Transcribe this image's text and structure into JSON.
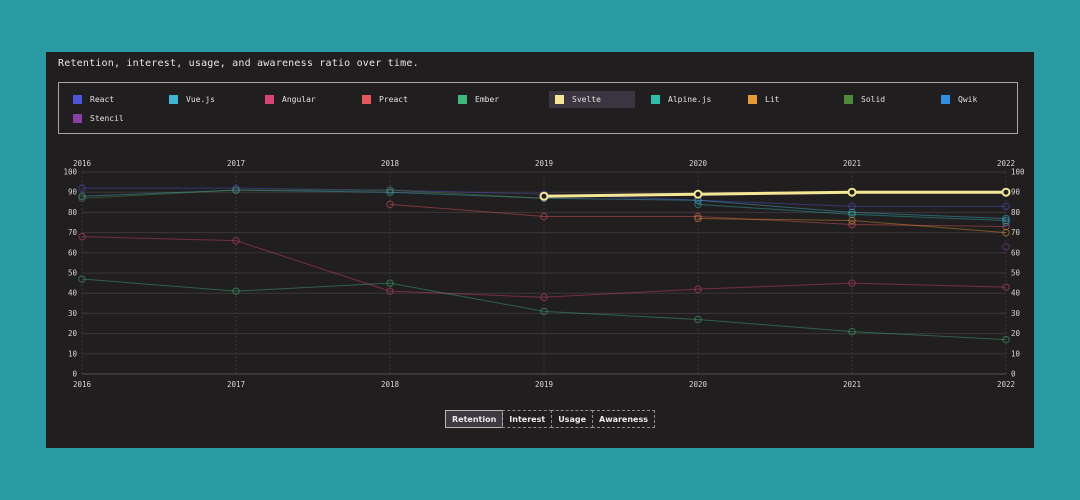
{
  "subtitle": "Retention, interest, usage, and awareness ratio over time.",
  "legend": [
    {
      "name": "React",
      "color": "#4c56d6"
    },
    {
      "name": "Vue.js",
      "color": "#3fb6d4"
    },
    {
      "name": "Angular",
      "color": "#d94474"
    },
    {
      "name": "Preact",
      "color": "#e5595e"
    },
    {
      "name": "Ember",
      "color": "#3cb878"
    },
    {
      "name": "Svelte",
      "color": "#f4e796",
      "active": true
    },
    {
      "name": "Alpine.js",
      "color": "#2ebdaa"
    },
    {
      "name": "Lit",
      "color": "#e89a33"
    },
    {
      "name": "Solid",
      "color": "#4f8a3b"
    },
    {
      "name": "Qwik",
      "color": "#2f8fe0"
    },
    {
      "name": "Stencil",
      "color": "#8a3fa8"
    }
  ],
  "tabs": [
    {
      "label": "Retention",
      "active": true
    },
    {
      "label": "Interest"
    },
    {
      "label": "Usage"
    },
    {
      "label": "Awareness"
    }
  ],
  "chart_data": {
    "type": "line",
    "x": [
      "2016",
      "2017",
      "2018",
      "2019",
      "2020",
      "2021",
      "2022"
    ],
    "yticks": [
      0,
      10,
      20,
      30,
      40,
      50,
      60,
      70,
      80,
      90,
      100
    ],
    "ylim": [
      0,
      100
    ],
    "grid": true,
    "highlighted": "Svelte",
    "series": [
      {
        "name": "React",
        "color": "#4c56d6",
        "values": [
          92,
          92,
          91,
          89,
          86,
          83,
          83
        ]
      },
      {
        "name": "Vue.js",
        "color": "#3fb6d4",
        "values": [
          88,
          91,
          90,
          87,
          86,
          80,
          77
        ]
      },
      {
        "name": "Angular",
        "color": "#d94474",
        "values": [
          68,
          66,
          41,
          38,
          42,
          45,
          43
        ]
      },
      {
        "name": "Preact",
        "color": "#e5595e",
        "values": [
          null,
          null,
          84,
          78,
          78,
          74,
          73
        ]
      },
      {
        "name": "Ember",
        "color": "#3cb878",
        "values": [
          47,
          41,
          45,
          31,
          27,
          21,
          17
        ]
      },
      {
        "name": "Svelte",
        "color": "#f4e796",
        "values": [
          null,
          null,
          null,
          88,
          89,
          90,
          90
        ]
      },
      {
        "name": "Alpine.js",
        "color": "#2ebdaa",
        "values": [
          null,
          null,
          null,
          null,
          84,
          79,
          76
        ]
      },
      {
        "name": "Lit",
        "color": "#e89a33",
        "values": [
          null,
          null,
          null,
          null,
          77,
          76,
          70
        ]
      },
      {
        "name": "Solid",
        "color": "#4f8a3b",
        "values": [
          87,
          91,
          91,
          87,
          null,
          null,
          null
        ]
      },
      {
        "name": "Qwik",
        "color": "#2f8fe0",
        "values": [
          null,
          null,
          null,
          null,
          null,
          null,
          75
        ]
      },
      {
        "name": "Stencil",
        "color": "#8a3fa8",
        "values": [
          null,
          null,
          null,
          null,
          null,
          null,
          63
        ]
      }
    ]
  }
}
